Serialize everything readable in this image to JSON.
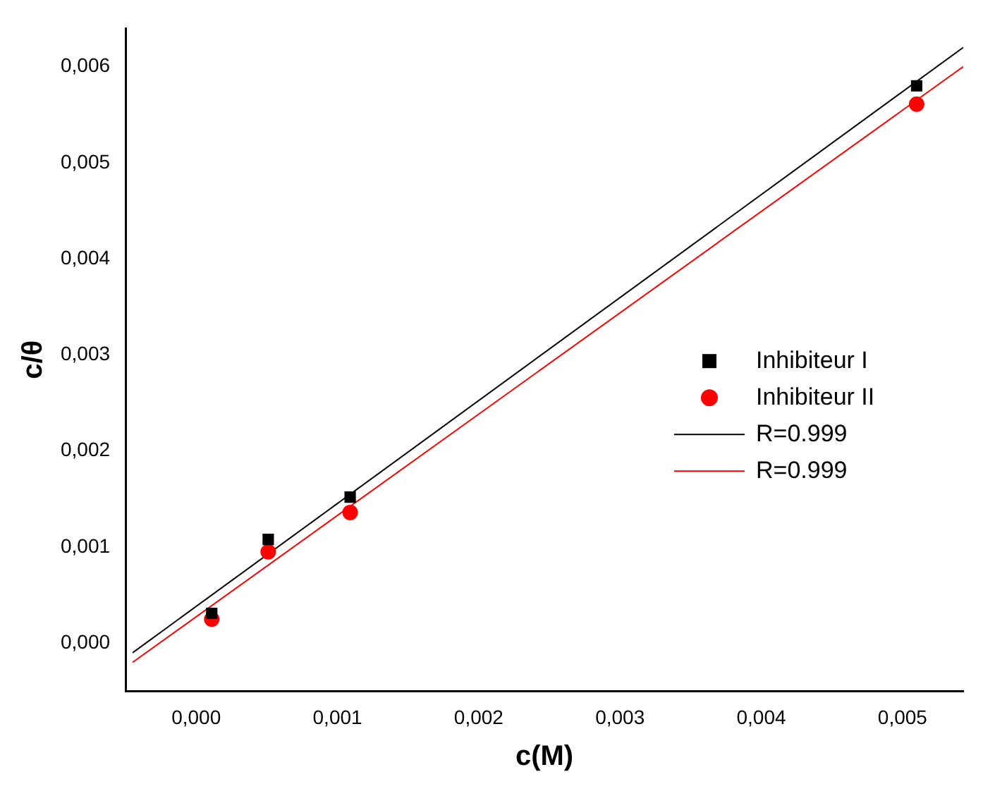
{
  "chart_data": {
    "type": "scatter",
    "xlabel": "c(M)",
    "ylabel": "c/θ",
    "xlim": [
      -0.0005,
      0.00543
    ],
    "ylim": [
      -0.0005,
      0.0064
    ],
    "xticks": [
      {
        "value": 0,
        "label": "0,000"
      },
      {
        "value": 0.001,
        "label": "0,001"
      },
      {
        "value": 0.002,
        "label": "0,002"
      },
      {
        "value": 0.003,
        "label": "0,003"
      },
      {
        "value": 0.004,
        "label": "0,004"
      },
      {
        "value": 0.005,
        "label": "0,005"
      }
    ],
    "yticks": [
      {
        "value": 0,
        "label": "0,000"
      },
      {
        "value": 0.001,
        "label": "0,001"
      },
      {
        "value": 0.002,
        "label": "0,002"
      },
      {
        "value": 0.003,
        "label": "0,003"
      },
      {
        "value": 0.004,
        "label": "0,004"
      },
      {
        "value": 0.005,
        "label": "0,005"
      },
      {
        "value": 0.006,
        "label": "0,006"
      }
    ],
    "legend": "right",
    "grid": false,
    "series": [
      {
        "name": "Inhibiteur I",
        "type": "scatter",
        "marker": "square",
        "color": "#000000",
        "x": [
          0.00011,
          0.00051,
          0.00109,
          0.0051
        ],
        "values": [
          0.00031,
          0.00108,
          0.00152,
          0.0058
        ]
      },
      {
        "name": "Inhibiteur II",
        "type": "scatter",
        "marker": "circle",
        "color": "#ff0000",
        "x": [
          0.00011,
          0.00051,
          0.00109,
          0.0051
        ],
        "values": [
          0.00025,
          0.00095,
          0.00136,
          0.00561
        ]
      },
      {
        "name": "R=0.999",
        "type": "line",
        "marker": "none",
        "color": "#000000",
        "x": [
          -0.00045,
          0.00543
        ],
        "values": [
          -0.0001,
          0.0062
        ]
      },
      {
        "name": "R=0.999",
        "type": "line",
        "marker": "none",
        "color": "#ff0000",
        "x": [
          -0.00045,
          0.00543
        ],
        "values": [
          -0.0002,
          0.006
        ]
      }
    ]
  }
}
